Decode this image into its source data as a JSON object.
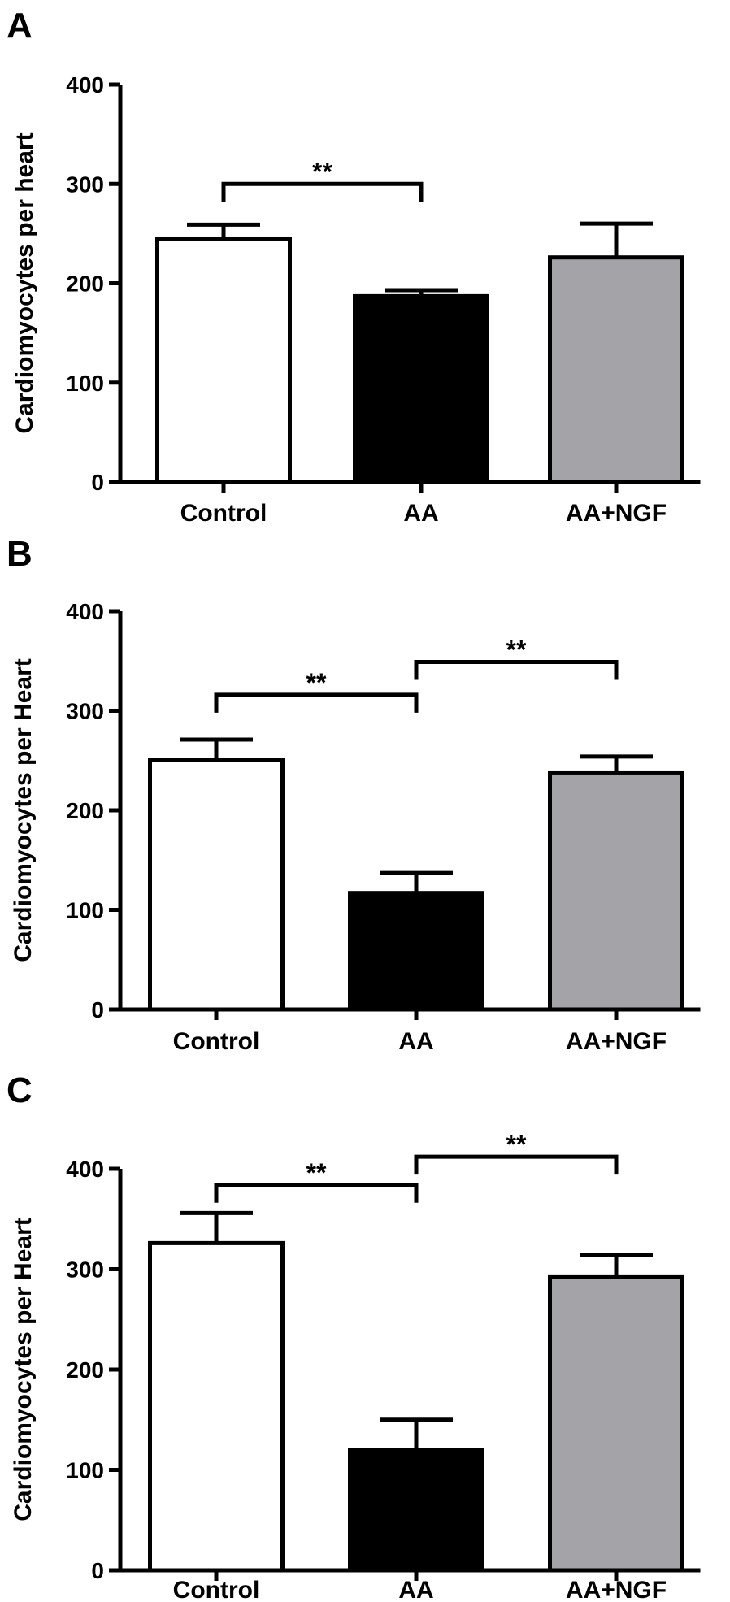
{
  "chart_data": [
    {
      "panel": "A",
      "type": "bar",
      "categories": [
        "Control",
        "AA",
        "AA+NGF"
      ],
      "values": [
        245,
        187,
        226
      ],
      "errors": [
        14,
        6,
        34
      ],
      "ylabel": "Cardiomyocytes per heart",
      "ylim": [
        0,
        400
      ],
      "yticks": [
        "0",
        "100",
        "200",
        "300",
        "400"
      ],
      "bar_colors": [
        "#ffffff",
        "#000000",
        "#a3a3a8"
      ],
      "significance": [
        {
          "from": 0,
          "to": 1,
          "label": "**",
          "y": 300
        }
      ]
    },
    {
      "panel": "B",
      "type": "bar",
      "categories": [
        "Control",
        "AA",
        "AA+NGF"
      ],
      "values": [
        251,
        117,
        238
      ],
      "errors": [
        20,
        20,
        16
      ],
      "ylabel": "Cardiomyocytes per Heart",
      "ylim": [
        0,
        400
      ],
      "yticks": [
        "0",
        "100",
        "200",
        "300",
        "400"
      ],
      "bar_colors": [
        "#ffffff",
        "#000000",
        "#a3a3a8"
      ],
      "significance": [
        {
          "from": 0,
          "to": 1,
          "label": "**",
          "y": 316
        },
        {
          "from": 1,
          "to": 2,
          "label": "**",
          "y": 349
        }
      ]
    },
    {
      "panel": "C",
      "type": "bar",
      "categories": [
        "Control",
        "AA",
        "AA+NGF"
      ],
      "values": [
        326,
        120,
        292
      ],
      "errors": [
        30,
        30,
        22
      ],
      "ylabel": "Cardiomyocytes per Heart",
      "ylim": [
        0,
        400
      ],
      "yticks": [
        "0",
        "100",
        "200",
        "300",
        "400"
      ],
      "bar_colors": [
        "#ffffff",
        "#000000",
        "#a3a3a8"
      ],
      "significance": [
        {
          "from": 0,
          "to": 1,
          "label": "**",
          "y": 384
        },
        {
          "from": 1,
          "to": 2,
          "label": "**",
          "y": 412
        }
      ]
    }
  ]
}
